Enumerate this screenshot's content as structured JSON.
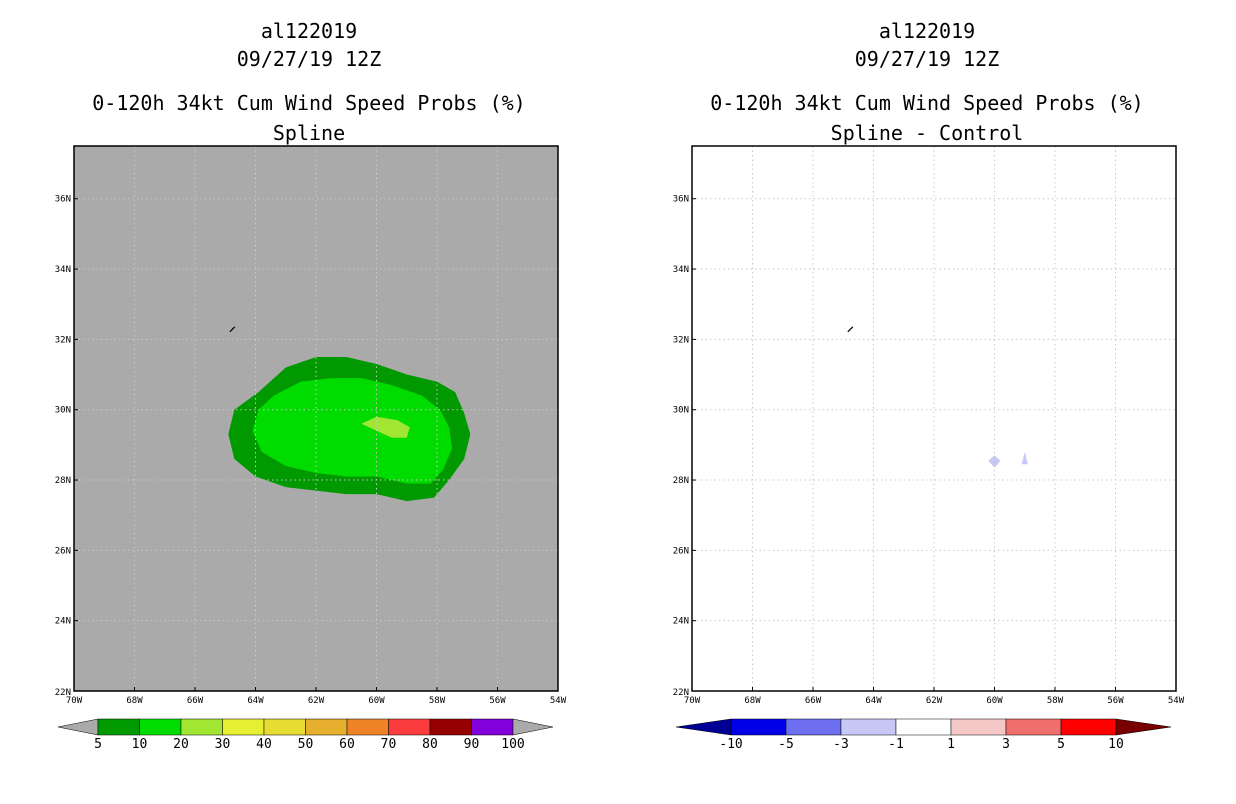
{
  "chart_data": [
    {
      "type": "heatmap",
      "title_lines": [
        "al122019",
        "09/27/19 12Z",
        "0-120h 34kt Cum Wind Speed Probs (%)",
        "Spline"
      ],
      "xlabel": "",
      "ylabel": "",
      "xlim": [
        -70,
        -54
      ],
      "ylim": [
        22,
        37.5
      ],
      "xticks": [
        -70,
        -68,
        -66,
        -64,
        -62,
        -60,
        -58,
        -56,
        -54
      ],
      "xtick_labels": [
        "70W",
        "68W",
        "66W",
        "64W",
        "62W",
        "60W",
        "58W",
        "56W",
        "54W"
      ],
      "yticks": [
        24,
        26,
        28,
        30,
        32,
        34,
        36
      ],
      "ytick_labels": [
        "24N",
        "26N",
        "28N",
        "30N",
        "32N",
        "34N",
        "36N"
      ],
      "extra_ytick_labels": [
        "22N"
      ],
      "grid": true,
      "background": "#aaaaaa",
      "colorbar": {
        "levels": [
          5,
          10,
          20,
          30,
          40,
          50,
          60,
          70,
          80,
          90,
          100
        ],
        "labels": [
          "5",
          "10",
          "20",
          "30",
          "40",
          "50",
          "60",
          "70",
          "80",
          "90",
          "100"
        ],
        "colors": [
          "#009900",
          "#00dc00",
          "#a0e632",
          "#e6f032",
          "#e6dc32",
          "#e6af2d",
          "#f08228",
          "#fa3c3c",
          "#960000",
          "#8200dc"
        ],
        "under_color": "#aaaaaa",
        "over_color": "#aaaaaa"
      },
      "contours": [
        {
          "level": 5,
          "color": "#009900",
          "points": [
            [
              -63.9,
              30.5
            ],
            [
              -63.0,
              31.2
            ],
            [
              -62.0,
              31.5
            ],
            [
              -61.0,
              31.5
            ],
            [
              -60.0,
              31.3
            ],
            [
              -59.0,
              31.0
            ],
            [
              -58.0,
              30.8
            ],
            [
              -57.4,
              30.5
            ],
            [
              -57.1,
              29.9
            ],
            [
              -56.9,
              29.3
            ],
            [
              -57.1,
              28.6
            ],
            [
              -57.6,
              28.0
            ],
            [
              -58.1,
              27.5
            ],
            [
              -59.0,
              27.4
            ],
            [
              -60.0,
              27.6
            ],
            [
              -61.0,
              27.6
            ],
            [
              -62.0,
              27.7
            ],
            [
              -63.0,
              27.8
            ],
            [
              -64.0,
              28.1
            ],
            [
              -64.7,
              28.6
            ],
            [
              -64.9,
              29.3
            ],
            [
              -64.7,
              30.0
            ]
          ]
        },
        {
          "level": 10,
          "color": "#00dc00",
          "points": [
            [
              -63.4,
              30.4
            ],
            [
              -62.5,
              30.8
            ],
            [
              -61.5,
              30.9
            ],
            [
              -60.5,
              30.9
            ],
            [
              -59.5,
              30.7
            ],
            [
              -58.5,
              30.4
            ],
            [
              -57.9,
              30.0
            ],
            [
              -57.6,
              29.5
            ],
            [
              -57.5,
              28.9
            ],
            [
              -57.8,
              28.3
            ],
            [
              -58.2,
              27.9
            ],
            [
              -59.0,
              27.9
            ],
            [
              -60.0,
              28.1
            ],
            [
              -61.0,
              28.1
            ],
            [
              -62.0,
              28.2
            ],
            [
              -63.0,
              28.4
            ],
            [
              -63.8,
              28.8
            ],
            [
              -64.1,
              29.4
            ],
            [
              -63.9,
              30.0
            ]
          ]
        },
        {
          "level": 20,
          "color": "#a0e632",
          "points": [
            [
              -60.5,
              29.6
            ],
            [
              -60.0,
              29.8
            ],
            [
              -59.3,
              29.7
            ],
            [
              -58.9,
              29.5
            ],
            [
              -59.0,
              29.2
            ],
            [
              -59.5,
              29.2
            ],
            [
              -60.0,
              29.4
            ]
          ]
        }
      ],
      "features": {
        "small_island": {
          "lon": -64.75,
          "lat": 32.3
        }
      }
    },
    {
      "type": "heatmap",
      "title_lines": [
        "al122019",
        "09/27/19 12Z",
        "0-120h 34kt Cum Wind Speed Probs (%)",
        "Spline - Control"
      ],
      "xlabel": "",
      "ylabel": "",
      "xlim": [
        -70,
        -54
      ],
      "ylim": [
        22,
        37.5
      ],
      "xticks": [
        -70,
        -68,
        -66,
        -64,
        -62,
        -60,
        -58,
        -56,
        -54
      ],
      "xtick_labels": [
        "70W",
        "68W",
        "66W",
        "64W",
        "62W",
        "60W",
        "58W",
        "56W",
        "54W"
      ],
      "yticks": [
        24,
        26,
        28,
        30,
        32,
        34,
        36
      ],
      "ytick_labels": [
        "24N",
        "26N",
        "28N",
        "30N",
        "32N",
        "34N",
        "36N"
      ],
      "extra_ytick_labels": [
        "22N"
      ],
      "grid": true,
      "background": "#ffffff",
      "colorbar": {
        "levels": [
          -10,
          -5,
          -3,
          -1,
          1,
          3,
          5,
          10
        ],
        "labels": [
          "-10",
          "-5",
          "-3",
          "-1",
          "1",
          "3",
          "5",
          "10"
        ],
        "colors": [
          "#0000e6",
          "#6e6ef0",
          "#c8c8f5",
          "#ffffff",
          "#f5c8c8",
          "#f06e6e",
          "#ff0000"
        ],
        "under_color": "#000096",
        "over_color": "#780000"
      },
      "contours": [
        {
          "level": -3,
          "color": "#c8c8f5",
          "points": [
            [
              -60.0,
              28.7
            ],
            [
              -59.8,
              28.55
            ],
            [
              -60.0,
              28.35
            ],
            [
              -60.2,
              28.55
            ]
          ]
        },
        {
          "level": -3,
          "color": "#c8c8f5",
          "points": [
            [
              -59.0,
              28.8
            ],
            [
              -58.9,
              28.45
            ],
            [
              -59.1,
              28.45
            ]
          ]
        }
      ],
      "features": {
        "small_island": {
          "lon": -64.75,
          "lat": 32.3
        }
      }
    }
  ]
}
